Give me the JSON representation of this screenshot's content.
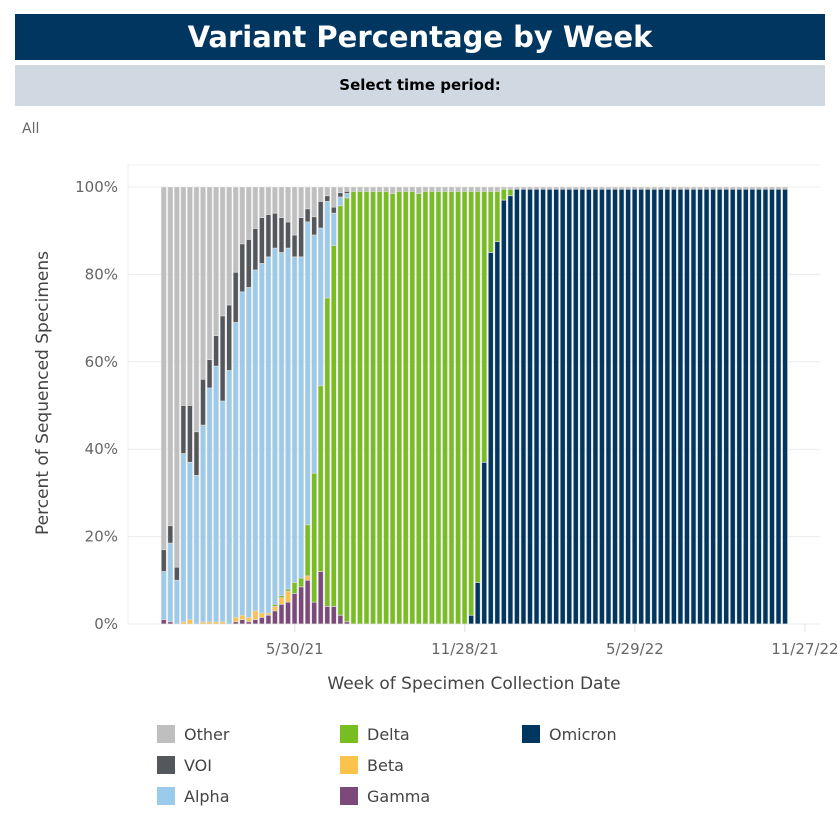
{
  "header": {
    "title": "Variant Percentage by Week",
    "filter_label": "Select time period:",
    "filter_value": "All"
  },
  "chart_data": {
    "type": "bar",
    "stacked": true,
    "title": "Variant Percentage by Week",
    "xlabel": "Week of Specimen Collection Date",
    "ylabel": "Percent of Sequenced Specimens",
    "ylim": [
      0,
      100
    ],
    "x_start": "1/10/21",
    "x_step_days": 7,
    "n_weeks": 96,
    "x_ticks": [
      "5/30/21",
      "11/28/21",
      "5/29/22",
      "11/27/22"
    ],
    "x_tick_week_index": [
      20,
      46,
      72,
      98
    ],
    "y_ticks": [
      "0%",
      "20%",
      "40%",
      "60%",
      "80%",
      "100%"
    ],
    "y_tick_values": [
      0,
      20,
      40,
      60,
      80,
      100
    ],
    "legend_position": "bottom",
    "series": [
      {
        "name": "Omicron",
        "color": "#003660",
        "values": [
          0,
          0,
          0,
          0,
          0,
          0,
          0,
          0,
          0,
          0,
          0,
          0,
          0,
          0,
          0,
          0,
          0,
          0,
          0,
          0,
          0,
          0,
          0,
          0,
          0,
          0,
          0,
          0,
          0,
          0,
          0,
          0,
          0,
          0,
          0,
          0,
          0,
          0,
          0,
          0,
          0,
          0,
          0,
          0,
          0,
          0,
          0,
          2,
          9.5,
          37,
          85,
          87.5,
          97,
          98,
          99.5,
          99.5,
          99.5,
          99.5,
          99.5,
          99.5,
          99.5,
          99.5,
          99.5,
          99.5,
          99.5,
          99.5,
          99.5,
          99.5,
          99.5,
          99.5,
          99.5,
          99.5,
          99.5,
          99.5,
          99.5,
          99.5,
          99.5,
          99.5,
          99.5,
          99.5,
          99.5,
          99.5,
          99.5,
          99.5,
          99.5,
          99.5,
          99.5,
          99.5,
          99.5,
          99.5,
          99.5,
          99.5,
          99.5,
          99.5,
          99.5,
          99.5
        ]
      },
      {
        "name": "Gamma",
        "color": "#7c4a7a",
        "values": [
          1,
          0.5,
          0,
          0,
          0,
          0,
          0,
          0,
          0,
          0,
          0,
          0.5,
          1,
          0.5,
          1,
          1.5,
          2,
          3,
          4.5,
          5,
          7,
          8.5,
          10,
          5,
          12,
          4,
          4,
          2,
          0.5,
          0,
          0,
          0,
          0,
          0,
          0,
          0,
          0,
          0,
          0,
          0,
          0,
          0,
          0,
          0,
          0,
          0,
          0,
          0,
          0,
          0,
          0,
          0,
          0,
          0,
          0,
          0,
          0,
          0,
          0,
          0,
          0,
          0,
          0,
          0,
          0,
          0,
          0,
          0,
          0,
          0,
          0,
          0,
          0,
          0,
          0,
          0,
          0,
          0,
          0,
          0,
          0,
          0,
          0,
          0,
          0,
          0,
          0,
          0,
          0,
          0,
          0,
          0,
          0,
          0,
          0,
          0
        ]
      },
      {
        "name": "Beta",
        "color": "#fbc34b",
        "values": [
          0,
          0,
          0,
          0.5,
          1,
          0,
          0.5,
          0.5,
          0.5,
          0.5,
          0,
          1,
          1,
          1,
          2,
          1,
          0.5,
          1,
          1.5,
          2.5,
          0,
          0,
          1,
          0,
          0,
          0,
          0,
          0,
          0,
          0,
          0,
          0,
          0,
          0,
          0,
          0,
          0,
          0,
          0,
          0,
          0,
          0,
          0,
          0,
          0,
          0,
          0,
          0,
          0,
          0,
          0,
          0,
          0,
          0,
          0,
          0,
          0,
          0,
          0,
          0,
          0,
          0,
          0,
          0,
          0,
          0,
          0,
          0,
          0,
          0,
          0,
          0,
          0,
          0,
          0,
          0,
          0,
          0,
          0,
          0,
          0,
          0,
          0,
          0,
          0,
          0,
          0,
          0,
          0,
          0,
          0,
          0,
          0,
          0,
          0,
          0
        ]
      },
      {
        "name": "Delta",
        "color": "#78be20",
        "values": [
          0,
          0,
          0,
          0,
          0,
          0,
          0,
          0,
          0,
          0,
          0,
          0,
          0,
          0,
          0,
          0,
          0,
          0.5,
          0.5,
          0.5,
          2.5,
          2,
          11.7,
          29.5,
          42.5,
          70.6,
          82.6,
          93.7,
          97,
          99,
          99,
          99,
          99,
          99,
          99,
          98.5,
          99,
          99,
          99,
          98.5,
          99,
          99,
          99,
          99,
          99,
          99,
          99,
          97,
          89.5,
          62,
          14,
          11.5,
          2.5,
          1.5,
          0,
          0,
          0,
          0,
          0,
          0,
          0,
          0,
          0,
          0,
          0,
          0,
          0,
          0,
          0,
          0,
          0,
          0,
          0,
          0,
          0,
          0,
          0,
          0,
          0,
          0,
          0,
          0,
          0,
          0,
          0,
          0,
          0,
          0,
          0,
          0,
          0,
          0,
          0,
          0,
          0,
          0
        ]
      },
      {
        "name": "Alpha",
        "color": "#9bcbeb",
        "values": [
          11,
          18,
          10,
          38.5,
          36,
          34,
          45,
          53.5,
          58.5,
          50.5,
          58,
          67.5,
          74,
          75.5,
          78,
          80,
          81.5,
          81.5,
          78.5,
          78,
          74.5,
          73.5,
          69.3,
          54.5,
          36.1,
          22.1,
          7.4,
          2,
          1,
          0,
          0,
          0,
          0,
          0,
          0,
          0,
          0,
          0,
          0,
          0,
          0,
          0,
          0,
          0,
          0,
          0,
          0,
          0,
          0,
          0,
          0,
          0,
          0,
          0,
          0,
          0,
          0,
          0,
          0,
          0,
          0,
          0,
          0,
          0,
          0,
          0,
          0,
          0,
          0,
          0,
          0,
          0,
          0,
          0,
          0,
          0,
          0,
          0,
          0,
          0,
          0,
          0,
          0,
          0,
          0,
          0,
          0,
          0,
          0,
          0,
          0,
          0,
          0,
          0,
          0,
          0
        ]
      },
      {
        "name": "VOI",
        "color": "#54575b",
        "values": [
          5,
          4,
          3,
          11,
          13,
          10,
          10.5,
          6.5,
          7,
          19.5,
          15,
          11.5,
          11,
          11,
          9.5,
          10.5,
          9.7,
          8,
          8,
          6,
          5,
          9,
          3,
          4.2,
          6.1,
          1.3,
          1.4,
          1,
          0.5,
          0,
          0,
          0,
          0,
          0,
          0,
          0,
          0,
          0,
          0,
          0,
          0,
          0,
          0,
          0,
          0,
          0,
          0,
          0,
          0,
          0,
          0,
          0,
          0,
          0,
          0,
          0,
          0,
          0,
          0,
          0,
          0,
          0,
          0,
          0,
          0,
          0,
          0,
          0,
          0,
          0,
          0,
          0,
          0,
          0,
          0,
          0,
          0,
          0,
          0,
          0,
          0,
          0,
          0,
          0,
          0,
          0,
          0,
          0,
          0,
          0,
          0,
          0,
          0,
          0,
          0,
          0
        ]
      },
      {
        "name": "Other",
        "color": "#bfbfbf",
        "values": [
          83,
          77.5,
          87,
          50,
          50,
          56,
          44,
          39.5,
          34,
          29.5,
          27,
          19.5,
          13,
          12,
          9.5,
          7,
          6.3,
          6,
          7,
          8,
          11,
          7,
          5,
          6.8,
          3.3,
          2,
          4.6,
          1.3,
          1,
          1,
          1,
          1,
          1,
          1,
          1,
          1.5,
          1,
          1,
          1,
          1.5,
          1,
          1,
          1,
          1,
          1,
          1,
          1,
          1,
          1,
          1,
          1,
          1,
          0.5,
          0.5,
          0.5,
          0.5,
          0.5,
          0.5,
          0.5,
          0.5,
          0.5,
          0.5,
          0.5,
          0.5,
          0.5,
          0.5,
          0.5,
          0.5,
          0.5,
          0.5,
          0.5,
          0.5,
          0.5,
          0.5,
          0.5,
          0.5,
          0.5,
          0.5,
          0.5,
          0.5,
          0.5,
          0.5,
          0.5,
          0.5,
          0.5,
          0.5,
          0.5,
          0.5,
          0.5,
          0.5,
          0.5,
          0.5,
          0.5,
          0.5,
          0.5,
          0.5
        ]
      }
    ],
    "legend": [
      {
        "name": "Other",
        "color": "#bfbfbf"
      },
      {
        "name": "VOI",
        "color": "#54575b"
      },
      {
        "name": "Alpha",
        "color": "#9bcbeb"
      },
      {
        "name": "Delta",
        "color": "#78be20"
      },
      {
        "name": "Beta",
        "color": "#fbc34b"
      },
      {
        "name": "Gamma",
        "color": "#7c4a7a"
      },
      {
        "name": "Omicron",
        "color": "#003660"
      }
    ]
  }
}
